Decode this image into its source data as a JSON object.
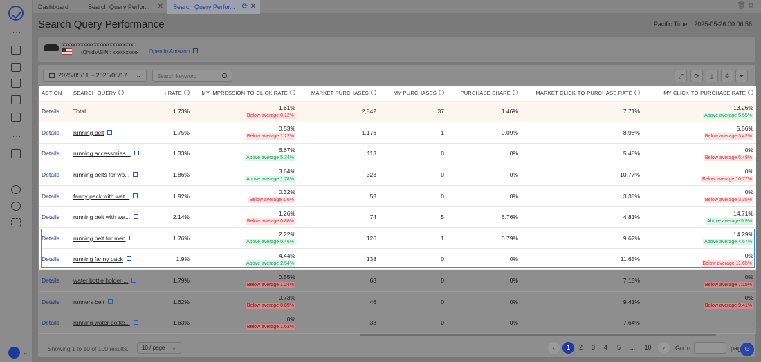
{
  "tabs": [
    {
      "label": "Dashboard"
    },
    {
      "label": "Search Query Perfor..."
    },
    {
      "label": "Search Query Perfor..."
    }
  ],
  "page": {
    "title": "Search Query Performance",
    "pacific_time": "Pacific Time :  2025-05-26 00:06:56"
  },
  "product": {
    "name": "xxxxxxxxxxxxxxxxxxxxxxxxxxx",
    "asin": "(Child)ASIN : xxxxxxxxxx",
    "link": "Open in Amazon"
  },
  "filters": {
    "date_range": "2025/05/11 ~ 2025/05/17",
    "search_placeholder": "Search keyword"
  },
  "table": {
    "headers": [
      "Action",
      "Search Query",
      "‹ Rate",
      "My Impression-to-Click Rate",
      "Market Purchases",
      "My Purchases",
      "Purchase Share",
      "Market Click-to-Purchase Rate",
      "My Click-to-Purchase Rate"
    ],
    "rows": [
      {
        "action": "Details",
        "query": "Total",
        "rate": "1.73%",
        "itc": "1.61%",
        "itc_badge": "Below average 0.12%",
        "itc_type": "below",
        "market_purchases": "2,542",
        "my_purchases": "37",
        "share": "1.46%",
        "market_ctp": "7.71%",
        "my_ctp": "13.26%",
        "ctp_badge": "Above average 5.55%",
        "ctp_type": "above"
      },
      {
        "action": "Details",
        "query": "running belt",
        "rate": "1.75%",
        "itc": "0.53%",
        "itc_badge": "Below average 1.22%",
        "itc_type": "below",
        "market_purchases": "1,176",
        "my_purchases": "1",
        "share": "0.09%",
        "market_ctp": "8.98%",
        "my_ctp": "5.56%",
        "ctp_badge": "Below average 3.42%",
        "ctp_type": "below"
      },
      {
        "action": "Details",
        "query": "running accessories...",
        "rate": "1.33%",
        "itc": "6.67%",
        "itc_badge": "Above average 5.34%",
        "itc_type": "above",
        "market_purchases": "113",
        "my_purchases": "0",
        "share": "0%",
        "market_ctp": "5.48%",
        "my_ctp": "0%",
        "ctp_badge": "Below average 5.48%",
        "ctp_type": "below"
      },
      {
        "action": "Details",
        "query": "running belts for wo...",
        "rate": "1.86%",
        "itc": "3.64%",
        "itc_badge": "Above average 1.78%",
        "itc_type": "above",
        "market_purchases": "323",
        "my_purchases": "0",
        "share": "0%",
        "market_ctp": "10.77%",
        "my_ctp": "0%",
        "ctp_badge": "Below average 10.77%",
        "ctp_type": "below"
      },
      {
        "action": "Details",
        "query": "fanny pack with wat...",
        "rate": "1.92%",
        "itc": "0.32%",
        "itc_badge": "Below average 1.6%",
        "itc_type": "below",
        "market_purchases": "53",
        "my_purchases": "0",
        "share": "0%",
        "market_ctp": "3.35%",
        "my_ctp": "0%",
        "ctp_badge": "Below average 3.35%",
        "ctp_type": "below"
      },
      {
        "action": "Details",
        "query": "running belt with wa...",
        "rate": "2.14%",
        "itc": "1.26%",
        "itc_badge": "Below average 0.88%",
        "itc_type": "below",
        "market_purchases": "74",
        "my_purchases": "5",
        "share": "6.76%",
        "market_ctp": "4.81%",
        "my_ctp": "14.71%",
        "ctp_badge": "Above average 9.9%",
        "ctp_type": "above"
      },
      {
        "action": "Details",
        "query": "running belt for men",
        "rate": "1.76%",
        "itc": "2.22%",
        "itc_badge": "Above average 0.46%",
        "itc_type": "above",
        "market_purchases": "126",
        "my_purchases": "1",
        "share": "0.79%",
        "market_ctp": "9.62%",
        "my_ctp": "14.29%",
        "ctp_badge": "Above average 4.67%",
        "ctp_type": "above"
      },
      {
        "action": "Details",
        "query": "running fanny pack",
        "rate": "1.9%",
        "itc": "4.44%",
        "itc_badge": "Above average 2.54%",
        "itc_type": "above",
        "market_purchases": "138",
        "my_purchases": "0",
        "share": "0%",
        "market_ctp": "11.65%",
        "my_ctp": "0%",
        "ctp_badge": "Below average 11.65%",
        "ctp_type": "below"
      },
      {
        "action": "Details",
        "query": "water bottle holder ...",
        "rate": "1.79%",
        "itc": "0.55%",
        "itc_badge": "Below average 1.24%",
        "itc_type": "below",
        "market_purchases": "63",
        "my_purchases": "0",
        "share": "0%",
        "market_ctp": "7.15%",
        "my_ctp": "0%",
        "ctp_badge": "Below average 7.15%",
        "ctp_type": "below"
      },
      {
        "action": "Details",
        "query": "runners belt",
        "rate": "1.62%",
        "itc": "0.73%",
        "itc_badge": "Below average 0.89%",
        "itc_type": "below",
        "market_purchases": "46",
        "my_purchases": "0",
        "share": "0%",
        "market_ctp": "9.41%",
        "my_ctp": "0%",
        "ctp_badge": "Below average 9.41%",
        "ctp_type": "below"
      },
      {
        "action": "Details",
        "query": "running water bottle...",
        "rate": "1.63%",
        "itc": "0%",
        "itc_badge": "Below average 1.63%",
        "itc_type": "below",
        "market_purchases": "33",
        "my_purchases": "0",
        "share": "0%",
        "market_ctp": "7.64%",
        "my_ctp": "-",
        "ctp_badge": "",
        "ctp_type": ""
      }
    ]
  },
  "footer": {
    "showing": "Showing 1 to 10 of 100 results.",
    "per_page": "10 / page",
    "pages": [
      "1",
      "2",
      "3",
      "4",
      "5",
      "...",
      "10"
    ],
    "current_page": "1",
    "goto": "Go to",
    "goto_tail": "pag"
  },
  "colors": {
    "accent": "#1f3ba8",
    "highlight_border": "#3a8fd8",
    "below_badge": "#d33",
    "above_badge": "#1f9d57"
  }
}
